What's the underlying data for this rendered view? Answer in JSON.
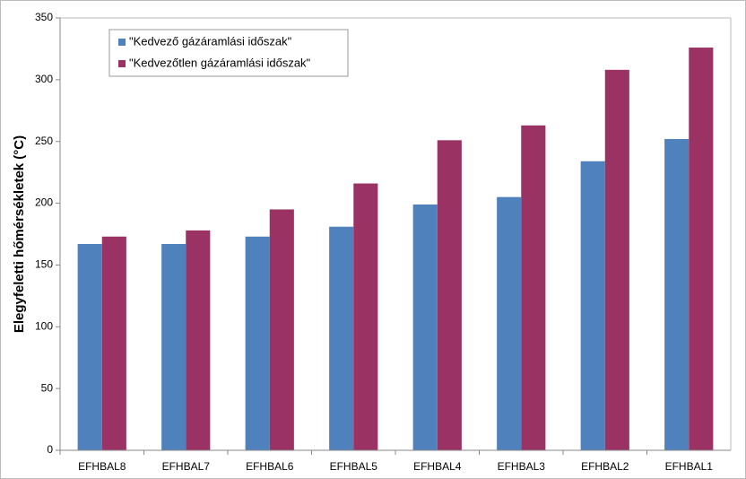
{
  "chart_data": {
    "type": "bar",
    "y_label": "Elegyfeletti hőmérsékletek (°C)",
    "categories": [
      "EFHBAL8",
      "EFHBAL7",
      "EFHBAL6",
      "EFHBAL5",
      "EFHBAL4",
      "EFHBAL3",
      "EFHBAL2",
      "EFHBAL1"
    ],
    "series": [
      {
        "name": "\"Kedvező gázáramlási időszak\"",
        "color": "#4f81bd",
        "values": [
          167,
          167,
          173,
          181,
          199,
          205,
          234,
          252
        ]
      },
      {
        "name": "\"Kedvezőtlen gázáramlási időszak\"",
        "color": "#9b3264",
        "values": [
          173,
          178,
          195,
          216,
          251,
          263,
          308,
          326
        ]
      }
    ],
    "ylim": [
      0,
      350
    ],
    "yticks": [
      0,
      50,
      100,
      150,
      200,
      250,
      300,
      350
    ],
    "grid": false,
    "legend": "top-left"
  }
}
